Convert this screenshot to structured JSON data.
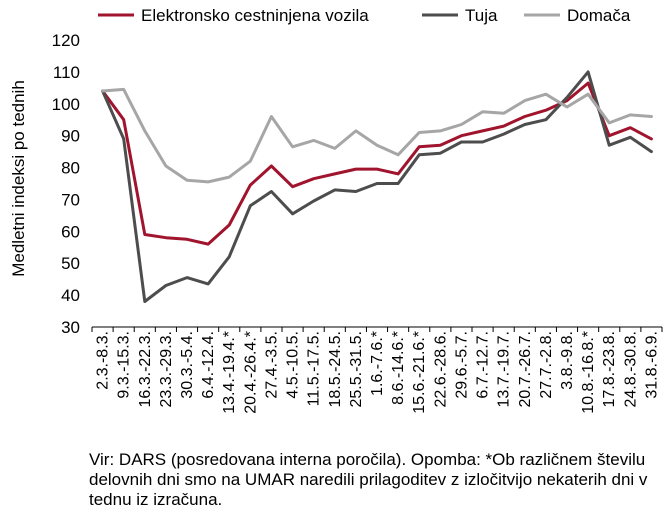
{
  "chart_data": {
    "type": "line",
    "title": "",
    "xlabel": "",
    "ylabel": "Medletni indeksi po tednih",
    "ylim": [
      30,
      120
    ],
    "yticks": [
      30,
      40,
      50,
      60,
      70,
      80,
      90,
      100,
      110,
      120
    ],
    "grid": false,
    "legend_position": "top",
    "categories": [
      "2.3.-8.3.",
      "9.3.-15.3.",
      "16.3.-22.3.",
      "23.3.-29.3.",
      "30.3.-5.4.",
      "6.4.-12.4.",
      "13.4.-19.4.*",
      "20.4.-26.4.*",
      "27.4.-3.5.",
      "4.5.-10.5.",
      "11.5.-17.5.",
      "18.5.-24.5.",
      "25.5.-31.5.",
      "1.6.-7.6.*",
      "8.6.-14.6.*",
      "15.6.-21.6.*",
      "22.6.-28.6.",
      "29.6.-5.7.",
      "6.7.-12.7.",
      "13.7.-19.7.",
      "20.7.-26.7.",
      "27.7.-2.8.",
      "3.8.-9.8.",
      "10.8.-16.8.*",
      "17.8.-23.8.",
      "24.8.-30.8.",
      "31.8.-6.9."
    ],
    "series": [
      {
        "name": "Elektronsko cestninjena vozila",
        "color": "#a0142d",
        "values": [
          104,
          95,
          59,
          58,
          57.5,
          56,
          62,
          74.5,
          80.5,
          74,
          76.5,
          78,
          79.5,
          79.5,
          78,
          86.5,
          87,
          90,
          91.5,
          93,
          96,
          98,
          101,
          106.5,
          90,
          92.5,
          89
        ]
      },
      {
        "name": "Tuja",
        "color": "#4d4d4d",
        "values": [
          104,
          89,
          38,
          43,
          45.5,
          43.5,
          52,
          68,
          72.5,
          65.5,
          69.5,
          73,
          72.5,
          75,
          75,
          84,
          84.5,
          88,
          88,
          90.5,
          93.5,
          95,
          102,
          110,
          87,
          89.5,
          85
        ]
      },
      {
        "name": "Domača",
        "color": "#a6a6a6",
        "values": [
          104,
          104.5,
          91.5,
          80.5,
          76,
          75.5,
          77,
          82,
          96,
          86.5,
          88.5,
          86,
          91.5,
          87,
          84,
          91,
          91.5,
          93.5,
          97.5,
          97,
          101,
          103,
          99,
          103,
          94,
          96.5,
          96
        ]
      }
    ]
  },
  "source_note": "Vir: DARS (posredovana interna poročila). Opomba: *Ob različnem številu delovnih dni smo na UMAR naredili prilagoditev z izločitvijo nekaterih dni v tednu iz izračuna."
}
